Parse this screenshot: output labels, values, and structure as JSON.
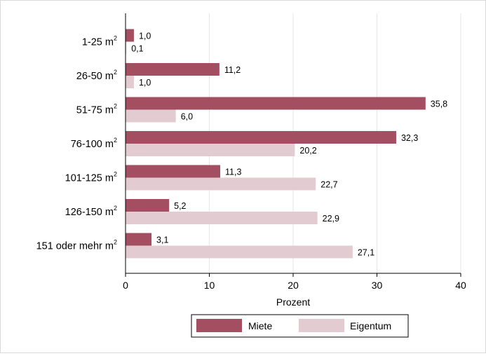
{
  "chart_data": {
    "type": "bar",
    "orientation": "horizontal",
    "categories": [
      "1-25 m",
      "26-50 m",
      "51-75 m",
      "76-100 m",
      "101-125 m",
      "126-150 m",
      "151 oder mehr m"
    ],
    "category_unit_superscript": "2",
    "series": [
      {
        "name": "Miete",
        "color": "#a44e62",
        "values": [
          1.0,
          11.2,
          35.8,
          32.3,
          11.3,
          5.2,
          3.1
        ],
        "labels": [
          "1,0",
          "11,2",
          "35,8",
          "32,3",
          "11,3",
          "5,2",
          "3,1"
        ]
      },
      {
        "name": "Eigentum",
        "color": "#e3ccd1",
        "values": [
          0.1,
          1.0,
          6.0,
          20.2,
          22.7,
          22.9,
          27.1
        ],
        "labels": [
          "0,1",
          "1,0",
          "6,0",
          "20,2",
          "22,7",
          "22,9",
          "27,1"
        ]
      }
    ],
    "xlabel": "Prozent",
    "ylabel": "",
    "xlim": [
      0,
      40
    ],
    "xticks": [
      0,
      10,
      20,
      30,
      40
    ],
    "grid": "vertical",
    "legend_position": "bottom"
  }
}
